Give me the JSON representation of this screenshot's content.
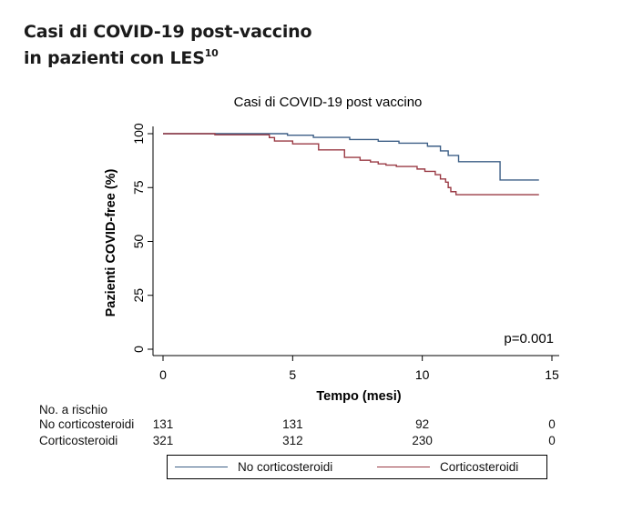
{
  "heading": {
    "line1": "Casi di COVID-19 post-vaccino",
    "line2": "in pazienti con LES",
    "superscript": "10"
  },
  "chart_data": {
    "type": "line",
    "title": "Casi di COVID-19 post vaccino",
    "xlabel": "Tempo (mesi)",
    "ylabel": "Pazienti COVID-free (%)",
    "xlim": [
      0,
      15
    ],
    "ylim": [
      0,
      100
    ],
    "xticks": [
      0,
      5,
      10,
      15
    ],
    "yticks": [
      0,
      25,
      50,
      75,
      100
    ],
    "grid": false,
    "annotation": "p=0.001",
    "series": [
      {
        "name": "No corticosteroidi",
        "color": "#3d5f86",
        "step": true,
        "x": [
          0,
          4.8,
          5.8,
          7.2,
          8.3,
          9.1,
          10.2,
          10.7,
          11.0,
          11.4,
          13.0,
          14.5
        ],
        "y": [
          100,
          99.3,
          98.3,
          97.3,
          96.5,
          95.6,
          94.2,
          92.0,
          89.9,
          87.0,
          78.5,
          78.5
        ]
      },
      {
        "name": "Corticosteroidi",
        "color": "#9a3a44",
        "step": true,
        "x": [
          0,
          2.0,
          4.1,
          4.3,
          5.0,
          6.0,
          7.0,
          7.6,
          8.0,
          8.3,
          8.6,
          9.0,
          9.8,
          10.1,
          10.5,
          10.7,
          10.9,
          11.0,
          11.1,
          11.3,
          14.5
        ],
        "y": [
          100,
          99.5,
          98.2,
          96.6,
          95.3,
          92.5,
          89.0,
          87.7,
          86.9,
          86.0,
          85.4,
          84.8,
          83.6,
          82.5,
          81.0,
          79.0,
          77.5,
          75.0,
          73.1,
          71.7,
          71.7
        ]
      }
    ]
  },
  "risk_table": {
    "title": "No. a rischio",
    "times": [
      0,
      5,
      10,
      15
    ],
    "rows": [
      {
        "label": "No corticosteroidi",
        "values": [
          "131",
          "131",
          "92",
          "0"
        ]
      },
      {
        "label": "Corticosteroidi",
        "values": [
          "321",
          "312",
          "230",
          "0"
        ]
      }
    ]
  },
  "legend": {
    "items": [
      {
        "label": "No corticosteroidi",
        "color": "#3d5f86"
      },
      {
        "label": "Corticosteroidi",
        "color": "#9a3a44"
      }
    ]
  }
}
